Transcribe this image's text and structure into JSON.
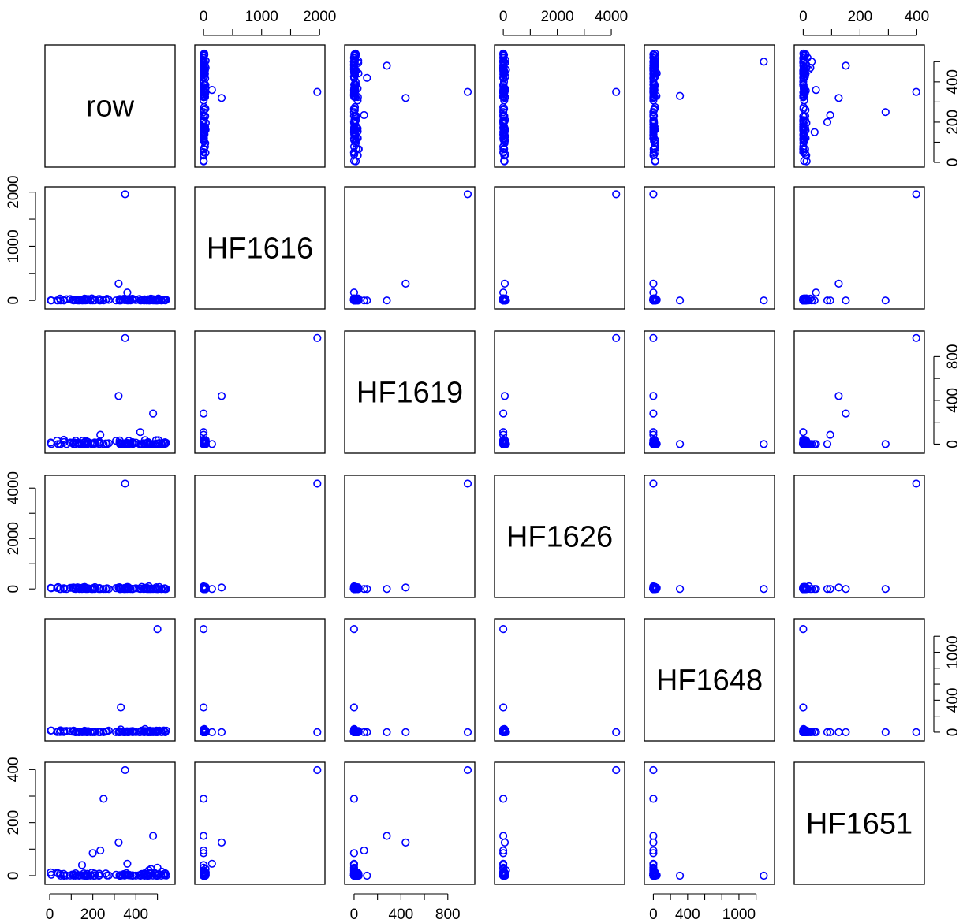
{
  "chart_data": {
    "type": "scatter",
    "kind": "scatterplot-matrix",
    "point_color": "#0000ff",
    "variables": [
      {
        "name": "row",
        "ticks": [
          0,
          200,
          400
        ],
        "range": [
          0,
          560
        ]
      },
      {
        "name": "HF1616",
        "ticks": [
          0,
          1000,
          2000
        ],
        "range": [
          -70,
          2010
        ]
      },
      {
        "name": "HF1619",
        "ticks": [
          0,
          400,
          800
        ],
        "range": [
          -40,
          990
        ]
      },
      {
        "name": "HF1626",
        "ticks": [
          0,
          2000,
          4000
        ],
        "range": [
          -150,
          4320
        ]
      },
      {
        "name": "HF1648",
        "ticks": [
          0,
          400,
          1000
        ],
        "range": [
          -50,
          1360
        ]
      },
      {
        "name": "HF1651",
        "ticks": [
          0,
          200,
          400
        ],
        "range": [
          -15,
          410
        ]
      }
    ],
    "minor_ticks": {
      "HF1616": [
        500,
        1500
      ],
      "HF1619": [
        200,
        600
      ],
      "HF1626": [
        1000,
        3000
      ],
      "HF1648": [
        200,
        600,
        800,
        1200
      ],
      "HF1651": [
        100,
        300
      ],
      "row": [
        100,
        300,
        500
      ]
    },
    "notable_points": [
      {
        "row": 350,
        "HF1616": 1960,
        "HF1619": 970,
        "HF1626": 4180,
        "HF1648": 0,
        "HF1651": 398
      },
      {
        "row": 320,
        "HF1616": 310,
        "HF1619": 440,
        "HF1626": 55,
        "HF1648": 0,
        "HF1651": 125
      },
      {
        "row": 500,
        "HF1616": 0,
        "HF1619": 0,
        "HF1626": 0,
        "HF1648": 1290,
        "HF1651": 0
      },
      {
        "row": 330,
        "HF1616": 0,
        "HF1619": 0,
        "HF1626": 0,
        "HF1648": 310,
        "HF1651": 0
      },
      {
        "row": 250,
        "HF1616": 0,
        "HF1619": 0,
        "HF1626": 0,
        "HF1648": 0,
        "HF1651": 290
      },
      {
        "row": 480,
        "HF1616": 0,
        "HF1619": 280,
        "HF1626": 0,
        "HF1648": 0,
        "HF1651": 150
      },
      {
        "row": 360,
        "HF1616": 145,
        "HF1619": 0,
        "HF1626": 0,
        "HF1648": 0,
        "HF1651": 45
      },
      {
        "row": 420,
        "HF1616": 0,
        "HF1619": 110,
        "HF1626": 0,
        "HF1648": 0,
        "HF1651": 0
      },
      {
        "row": 235,
        "HF1616": 0,
        "HF1619": 85,
        "HF1626": 0,
        "HF1648": 0,
        "HF1651": 95
      },
      {
        "row": 200,
        "HF1616": 0,
        "HF1619": 0,
        "HF1626": 0,
        "HF1648": 0,
        "HF1651": 85
      },
      {
        "row": 150,
        "HF1616": 0,
        "HF1619": 0,
        "HF1626": 0,
        "HF1648": 0,
        "HF1651": 40
      },
      {
        "row": 470,
        "HF1616": 35,
        "HF1619": 0,
        "HF1626": 0,
        "HF1648": 0,
        "HF1651": 25
      },
      {
        "row": 460,
        "HF1616": 0,
        "HF1619": 0,
        "HF1626": 100,
        "HF1648": 0,
        "HF1651": 20
      },
      {
        "row": 500,
        "HF1616": 0,
        "HF1619": 0,
        "HF1626": 0,
        "HF1648": 0,
        "HF1651": 30
      },
      {
        "row": 520,
        "HF1616": 0,
        "HF1619": 0,
        "HF1626": 0,
        "HF1648": 0,
        "HF1651": 15
      }
    ],
    "background_points": {
      "row": [
        0,
        550
      ],
      "HF1616": [
        0,
        40
      ],
      "HF1619": [
        0,
        40
      ],
      "HF1626": [
        0,
        80
      ],
      "HF1648": [
        0,
        40
      ],
      "HF1651": [
        0,
        12
      ]
    }
  }
}
